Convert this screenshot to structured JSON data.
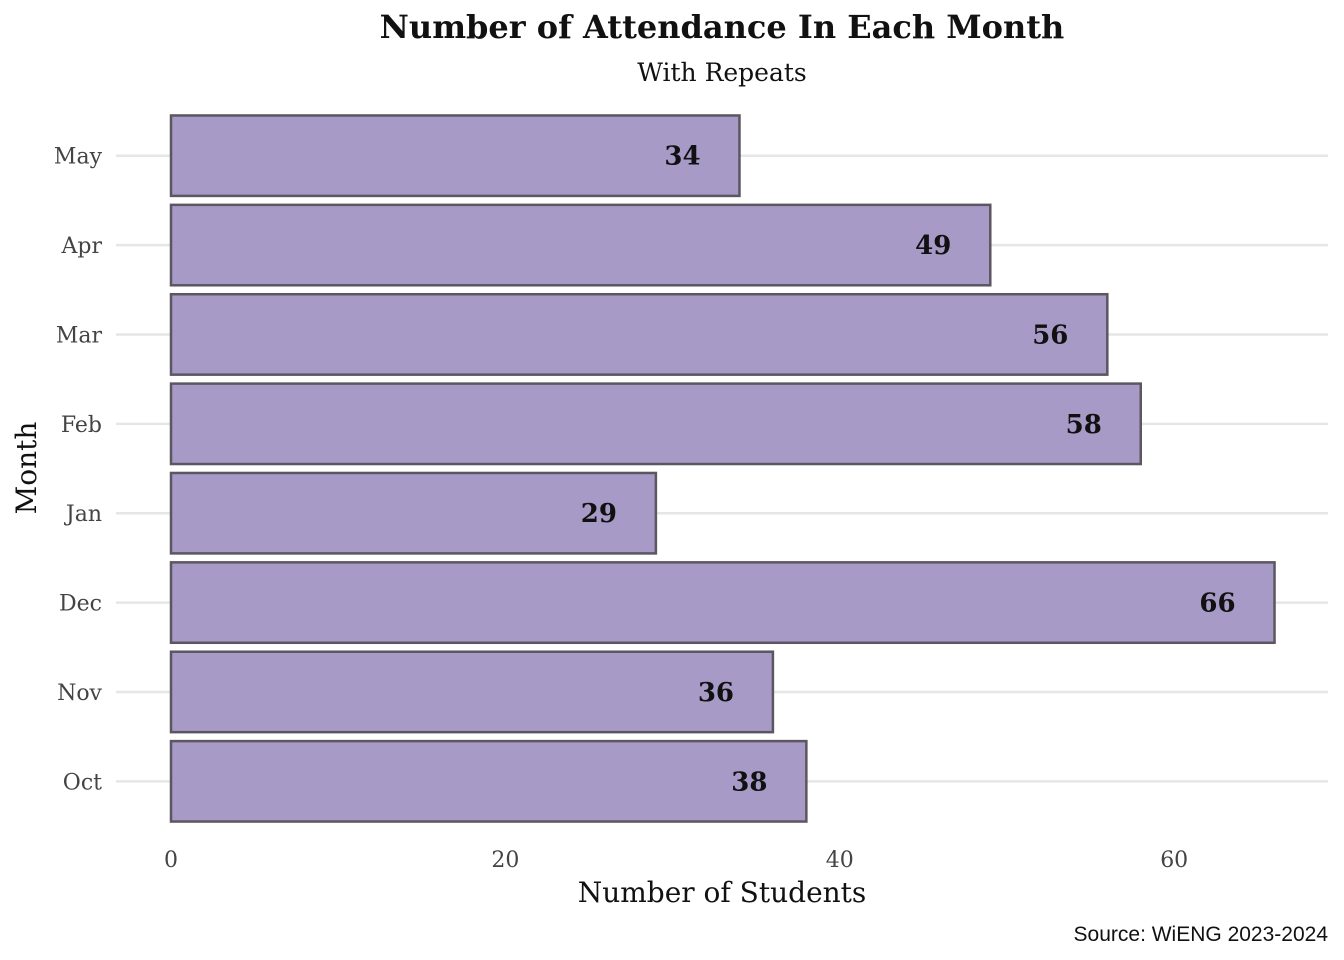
{
  "chart_data": {
    "type": "bar",
    "orientation": "horizontal",
    "title": "Number of Attendance In Each Month",
    "subtitle": "With Repeats",
    "xlabel": "Number of Students",
    "ylabel": "Month",
    "caption": "Source: WiENG 2023-2024",
    "categories": [
      "Oct",
      "Nov",
      "Dec",
      "Jan",
      "Feb",
      "Mar",
      "Apr",
      "May"
    ],
    "values": [
      38,
      36,
      66,
      29,
      58,
      56,
      49,
      34
    ],
    "xlim": [
      0,
      69
    ],
    "xticks": [
      0,
      20,
      40,
      60
    ],
    "grid": "horizontal major gridlines at each month",
    "legend": "none",
    "colors": {
      "bar_fill": "#a79ac7",
      "bar_outline": "#5c5660",
      "gridline": "#e6e6e6",
      "text": "#111111",
      "tick_text": "#444444"
    }
  }
}
